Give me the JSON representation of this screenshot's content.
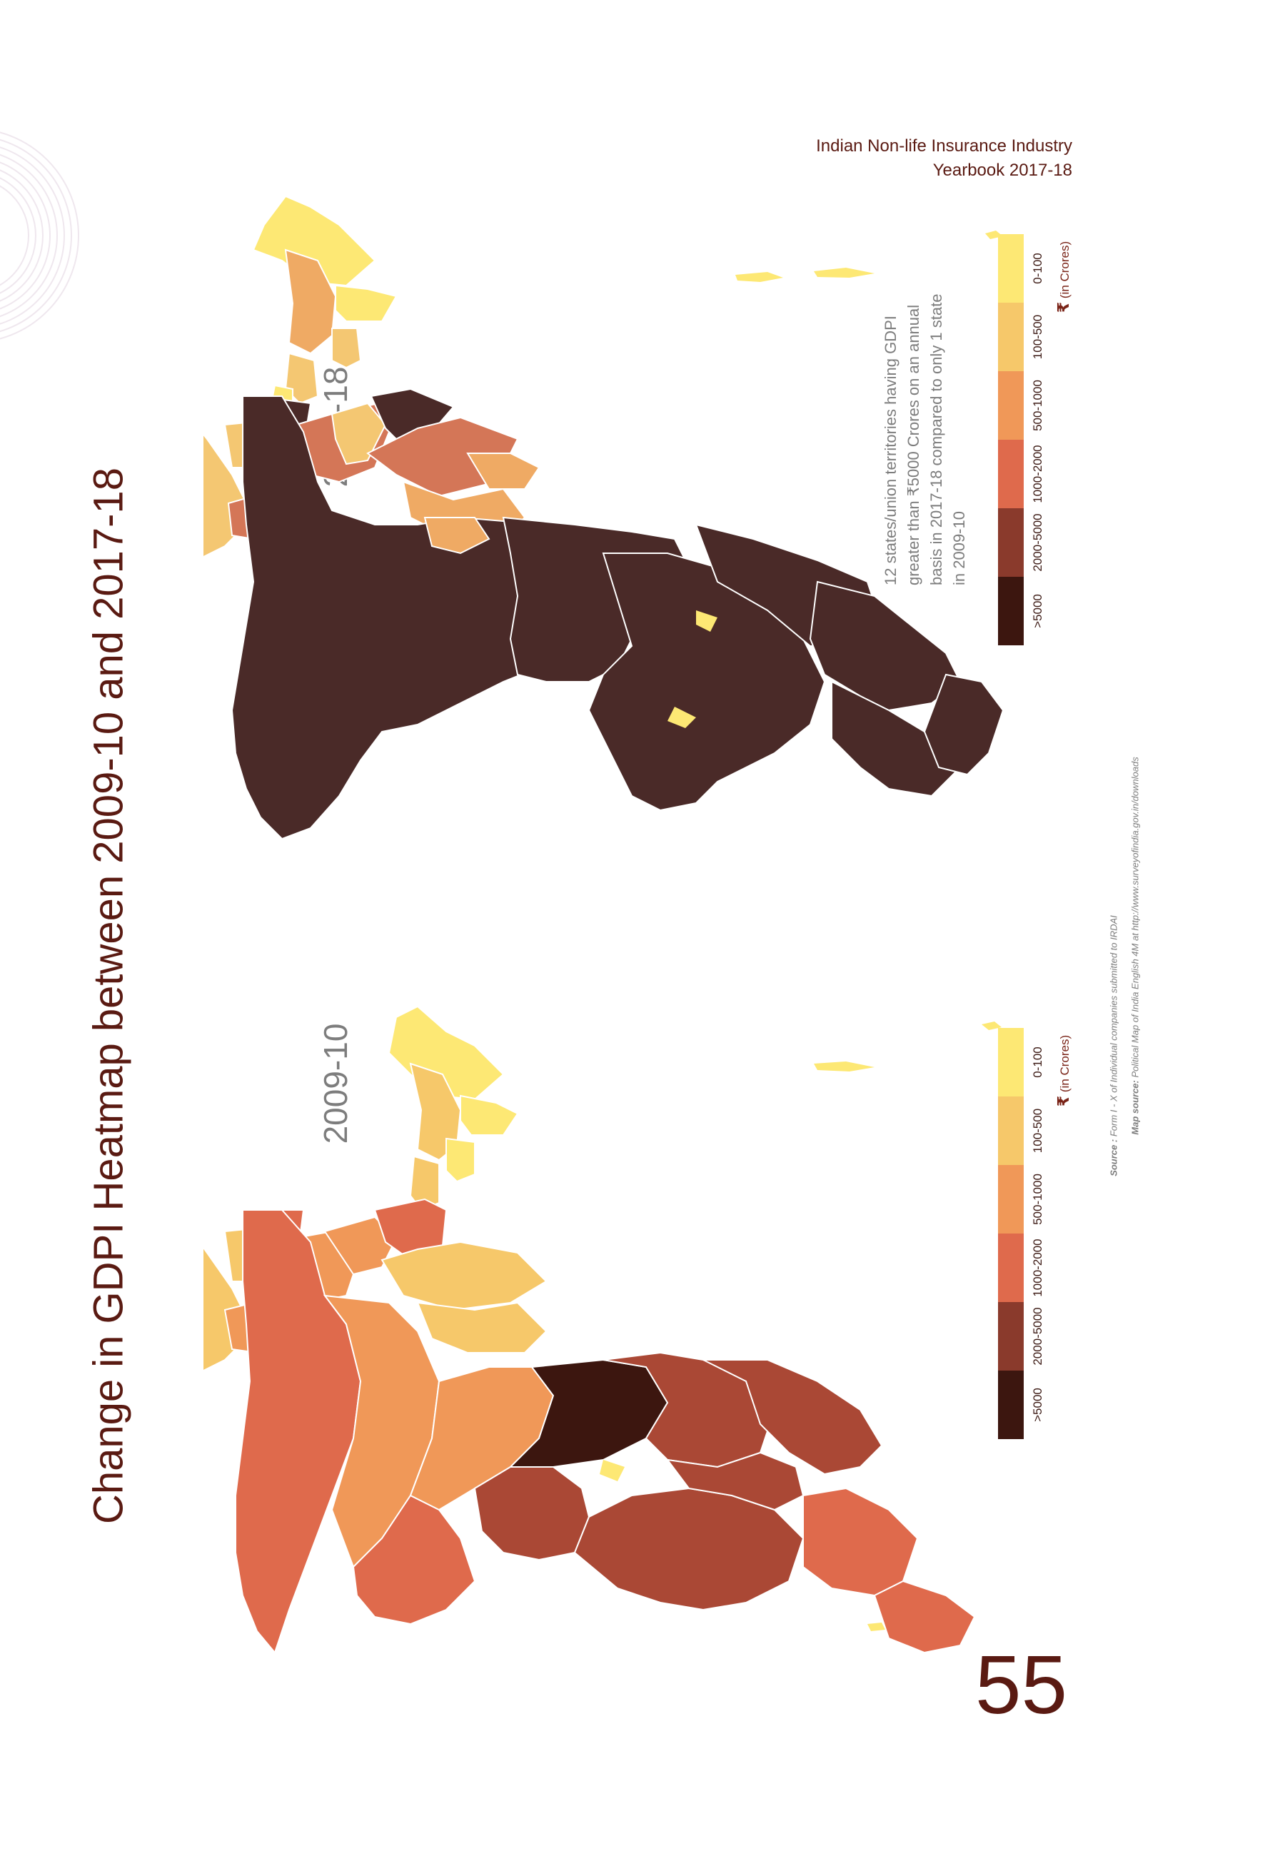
{
  "page": {
    "title": "Change in GDPI Heatmap between 2009-10 and 2017-18",
    "header_line1": "Indian Non-life Insurance Industry",
    "header_line2": "Yearbook 2017-18",
    "page_number": "55"
  },
  "maps": [
    {
      "year": "2009-10",
      "region_colors": [
        "#f6c86a",
        "#f09858",
        "#df6a4c",
        "#aa4835",
        "#3c160f",
        "#fde874"
      ]
    },
    {
      "year": "2017-18",
      "region_colors": [
        "#f4c772",
        "#efaa64",
        "#d47657",
        "#4a2a28",
        "#fde874"
      ]
    }
  ],
  "note": "12 states/union territories having GDPI greater than ₹5000 Crores on an annual basis in 2017-18 compared to only 1 state in 2009-10",
  "legend": {
    "unit_symbol": "₹",
    "unit_text": "(in Crores)",
    "items": [
      {
        "label": ">5000",
        "color": "#3c160f"
      },
      {
        "label": "2000-5000",
        "color": "#8a3a2c"
      },
      {
        "label": "1000-2000",
        "color": "#df6a4c"
      },
      {
        "label": "500-1000",
        "color": "#f09858"
      },
      {
        "label": "100-500",
        "color": "#f6c86a"
      },
      {
        "label": "0-100",
        "color": "#fde874"
      }
    ]
  },
  "sources": {
    "source_key": "Source :",
    "source_text": "Form I - X of Individual companies submitted to IRDAI",
    "map_source_key": "Map source:",
    "map_source_text": "Political Map of India English 4M at http://www.surveyofindia.gov.in/downloads"
  }
}
